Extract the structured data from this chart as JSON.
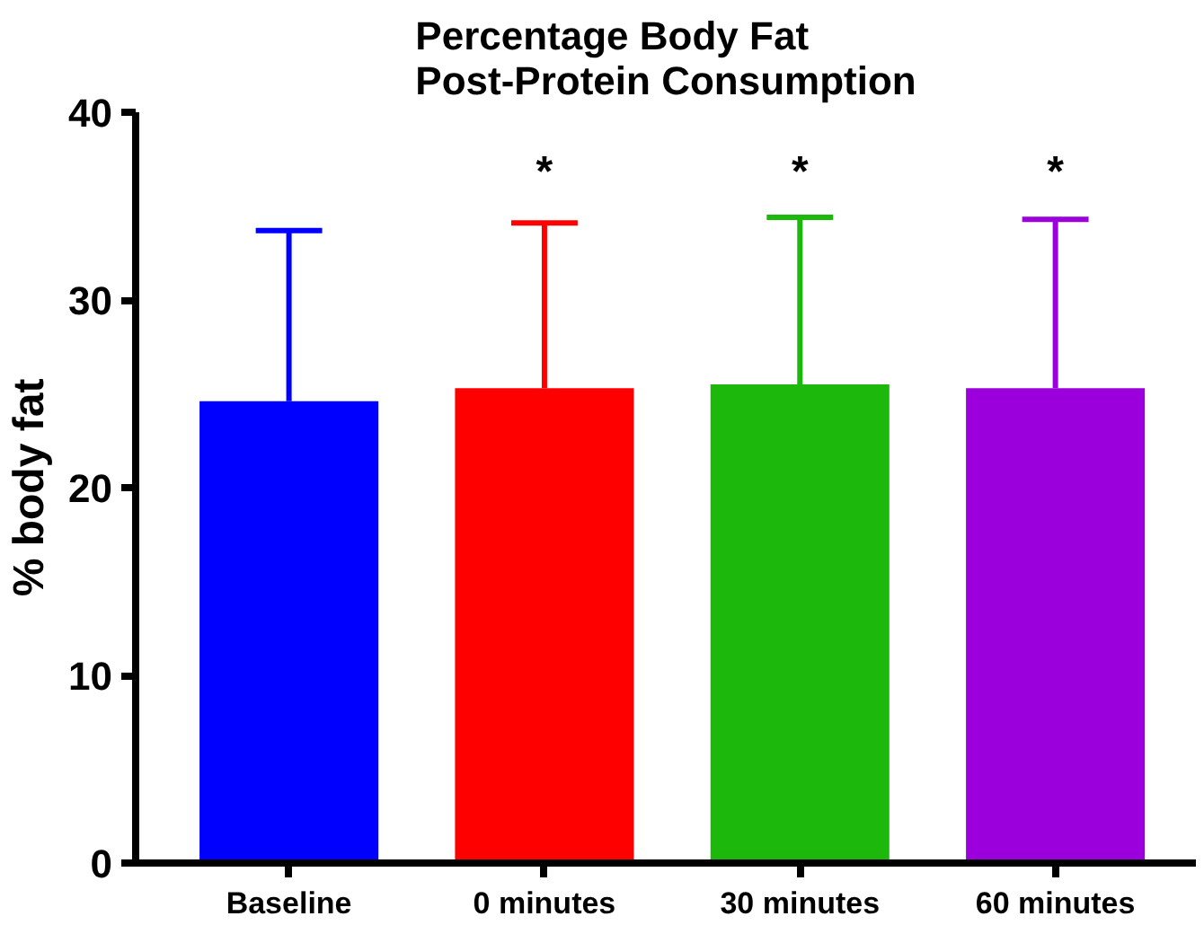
{
  "chart_data": {
    "type": "bar",
    "title": "Percentage Body Fat\nPost-Protein Consumption",
    "ylabel": "% body fat",
    "categories": [
      "Baseline",
      "0 minutes",
      "30 minutes",
      "60 minutes"
    ],
    "values": [
      24.6,
      25.3,
      25.5,
      25.3
    ],
    "colors": [
      "#0000ff",
      "#ff0000",
      "#1cb80c",
      "#9b00dc"
    ],
    "errors": [
      9.1,
      8.8,
      8.9,
      9.0
    ],
    "ylim": [
      0,
      40
    ],
    "yticks": [
      0,
      10,
      20,
      30,
      40
    ],
    "grid": false,
    "annotations": [
      "*",
      "*",
      "*"
    ]
  }
}
